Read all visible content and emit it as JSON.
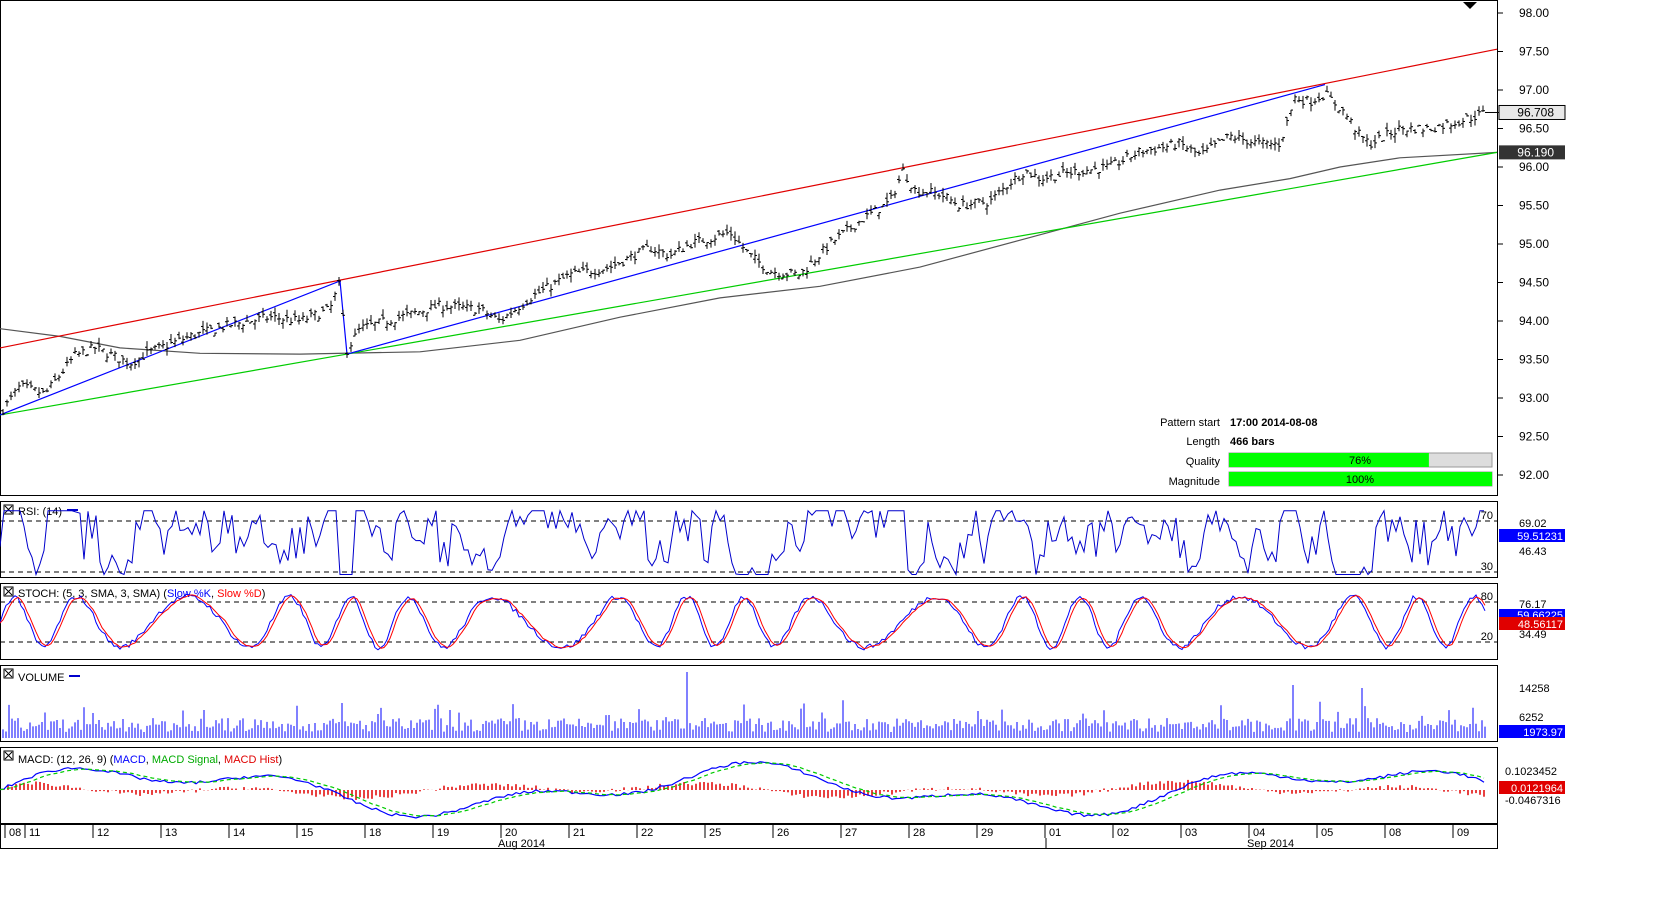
{
  "chart_data": {
    "type": "line",
    "subtype": "candlestick_with_indicators",
    "price_axis": {
      "ticks": [
        "98.00",
        "97.50",
        "97.00",
        "96.50",
        "96.00",
        "95.50",
        "95.00",
        "94.50",
        "94.00",
        "93.50",
        "93.00",
        "92.50",
        "92.00"
      ],
      "ylim": [
        91.8,
        98.2
      ]
    },
    "price_labels": {
      "last": "96.708",
      "ma": "96.190"
    },
    "pattern_info": [
      {
        "label": "Pattern start",
        "value": "17:00 2014-08-08"
      },
      {
        "label": "Length",
        "value": "466 bars"
      },
      {
        "label": "Quality",
        "value": "76%",
        "fraction": 0.76
      },
      {
        "label": "Magnitude",
        "value": "100%",
        "fraction": 1.0
      }
    ],
    "trend_lines": {
      "resistance": {
        "color": "#e00000",
        "from_price": 93.65,
        "to_price": 97.53
      },
      "support": {
        "color": "#00cc00",
        "from_price": 92.78,
        "to_price": 96.19
      },
      "pattern": {
        "color": "#0000ff",
        "points": [
          [
            0,
            92.78
          ],
          [
            340,
            94.52
          ],
          [
            347,
            93.57
          ],
          [
            1325,
            97.07
          ]
        ]
      }
    },
    "x_ticks": [
      "08",
      "11",
      "12",
      "13",
      "14",
      "15",
      "18",
      "19",
      "20",
      "21",
      "22",
      "25",
      "26",
      "27",
      "28",
      "29",
      "01",
      "02",
      "03",
      "04",
      "05",
      "08",
      "09"
    ],
    "months": [
      "Aug 2014",
      "Sep 2014"
    ],
    "rsi": {
      "title": "RSI: (14)",
      "levels": {
        "upper": "70",
        "lower": "30"
      },
      "axis_labels": [
        "69.02",
        "46.43"
      ],
      "current": "59.51231"
    },
    "stoch": {
      "title_prefix": "STOCH: (5, 3, SMA, 3, SMA)",
      "k_label": "Slow %K",
      "d_label": "Slow %D",
      "levels": {
        "upper": "80",
        "lower": "20"
      },
      "axis_labels": [
        "76.17",
        "34.49"
      ],
      "current_k": "59.66225",
      "current_d": "48.56117"
    },
    "volume": {
      "title": "VOLUME",
      "axis_labels": [
        "14258",
        "6252"
      ],
      "current": "1973.97"
    },
    "macd": {
      "title_prefix": "MACD: (12, 26, 9)",
      "macd_label": "MACD",
      "signal_label": "MACD Signal",
      "hist_label": "MACD Hist",
      "axis_labels": [
        "0.1023452",
        "-0.0467316"
      ],
      "current": "0.0121964"
    },
    "colors": {
      "resistance": "#e00000",
      "support": "#00cc00",
      "pattern": "#0000ff",
      "ma": "#555555",
      "rsi": "#0000cc",
      "stoch_k": "#0000ff",
      "stoch_d": "#ff0000",
      "volume": "#0000ff",
      "macd": "#0000ff",
      "macd_signal": "#00cc00",
      "macd_hist": "#e00000",
      "quality_bar": "#00ff00"
    }
  }
}
